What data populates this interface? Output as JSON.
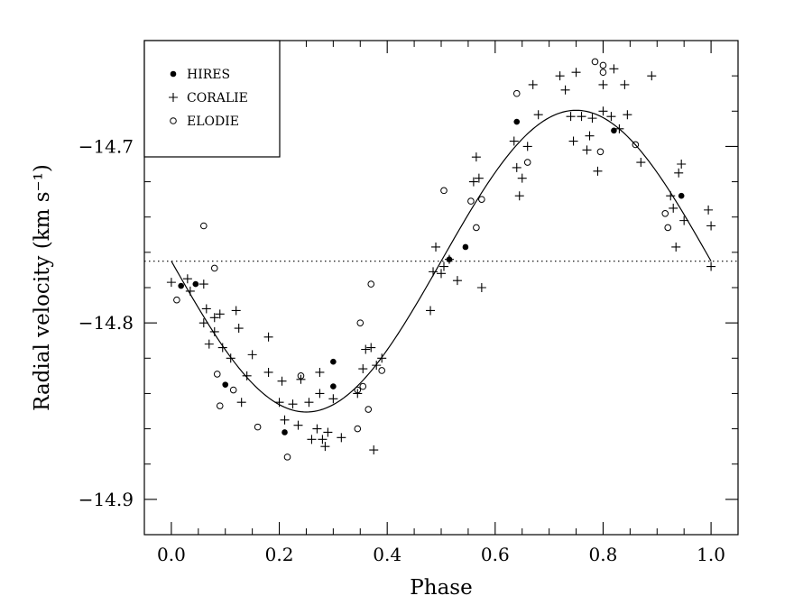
{
  "chart_data": {
    "type": "scatter",
    "xlabel": "Phase",
    "ylabel": "Radial velocity (km s⁻¹)",
    "xlim": [
      -0.05,
      1.05
    ],
    "ylim": [
      -14.92,
      -14.64
    ],
    "xticks": [
      0.0,
      0.2,
      0.4,
      0.6,
      0.8,
      1.0
    ],
    "xtick_labels": [
      "0.0",
      "0.2",
      "0.4",
      "0.6",
      "0.8",
      "1.0"
    ],
    "yticks": [
      -14.9,
      -14.8,
      -14.7
    ],
    "ytick_labels": [
      "−14.9",
      "−14.8",
      "−14.7"
    ],
    "grid": false,
    "legend_position": "top-left",
    "reference_line": {
      "y": -14.765,
      "style": "dotted"
    },
    "fit_curve": {
      "type": "sine",
      "offset": -14.765,
      "amplitude": 0.0855,
      "period": 1.0,
      "phase_of_minimum": 0.25
    },
    "series": [
      {
        "name": "HIRES",
        "marker": "filled-circle",
        "points": [
          [
            0.018,
            -14.779
          ],
          [
            0.045,
            -14.778
          ],
          [
            0.1,
            -14.835
          ],
          [
            0.21,
            -14.862
          ],
          [
            0.3,
            -14.822
          ],
          [
            0.3,
            -14.836
          ],
          [
            0.515,
            -14.764
          ],
          [
            0.545,
            -14.757
          ],
          [
            0.64,
            -14.686
          ],
          [
            0.82,
            -14.691
          ],
          [
            0.945,
            -14.728
          ]
        ]
      },
      {
        "name": "CORALIE",
        "marker": "plus",
        "points": [
          [
            0.0,
            -14.777
          ],
          [
            0.03,
            -14.775
          ],
          [
            0.035,
            -14.782
          ],
          [
            0.06,
            -14.778
          ],
          [
            0.06,
            -14.8
          ],
          [
            0.065,
            -14.792
          ],
          [
            0.07,
            -14.812
          ],
          [
            0.08,
            -14.797
          ],
          [
            0.08,
            -14.805
          ],
          [
            0.09,
            -14.795
          ],
          [
            0.095,
            -14.814
          ],
          [
            0.11,
            -14.82
          ],
          [
            0.12,
            -14.793
          ],
          [
            0.125,
            -14.803
          ],
          [
            0.13,
            -14.845
          ],
          [
            0.14,
            -14.83
          ],
          [
            0.15,
            -14.818
          ],
          [
            0.18,
            -14.808
          ],
          [
            0.18,
            -14.828
          ],
          [
            0.2,
            -14.845
          ],
          [
            0.205,
            -14.833
          ],
          [
            0.21,
            -14.855
          ],
          [
            0.225,
            -14.846
          ],
          [
            0.235,
            -14.858
          ],
          [
            0.24,
            -14.832
          ],
          [
            0.255,
            -14.845
          ],
          [
            0.26,
            -14.866
          ],
          [
            0.27,
            -14.86
          ],
          [
            0.275,
            -14.84
          ],
          [
            0.275,
            -14.828
          ],
          [
            0.28,
            -14.866
          ],
          [
            0.285,
            -14.87
          ],
          [
            0.29,
            -14.862
          ],
          [
            0.3,
            -14.843
          ],
          [
            0.315,
            -14.865
          ],
          [
            0.345,
            -14.84
          ],
          [
            0.355,
            -14.826
          ],
          [
            0.36,
            -14.815
          ],
          [
            0.37,
            -14.814
          ],
          [
            0.375,
            -14.872
          ],
          [
            0.38,
            -14.824
          ],
          [
            0.39,
            -14.82
          ],
          [
            0.48,
            -14.793
          ],
          [
            0.485,
            -14.771
          ],
          [
            0.49,
            -14.757
          ],
          [
            0.5,
            -14.772
          ],
          [
            0.505,
            -14.768
          ],
          [
            0.515,
            -14.764
          ],
          [
            0.53,
            -14.776
          ],
          [
            0.56,
            -14.72
          ],
          [
            0.565,
            -14.706
          ],
          [
            0.57,
            -14.718
          ],
          [
            0.575,
            -14.78
          ],
          [
            0.635,
            -14.697
          ],
          [
            0.64,
            -14.712
          ],
          [
            0.645,
            -14.728
          ],
          [
            0.65,
            -14.718
          ],
          [
            0.66,
            -14.7
          ],
          [
            0.67,
            -14.665
          ],
          [
            0.68,
            -14.682
          ],
          [
            0.72,
            -14.66
          ],
          [
            0.73,
            -14.668
          ],
          [
            0.74,
            -14.683
          ],
          [
            0.745,
            -14.697
          ],
          [
            0.75,
            -14.658
          ],
          [
            0.76,
            -14.683
          ],
          [
            0.77,
            -14.702
          ],
          [
            0.775,
            -14.694
          ],
          [
            0.78,
            -14.684
          ],
          [
            0.79,
            -14.714
          ],
          [
            0.8,
            -14.665
          ],
          [
            0.8,
            -14.68
          ],
          [
            0.815,
            -14.683
          ],
          [
            0.82,
            -14.656
          ],
          [
            0.83,
            -14.69
          ],
          [
            0.84,
            -14.665
          ],
          [
            0.845,
            -14.682
          ],
          [
            0.87,
            -14.709
          ],
          [
            0.89,
            -14.66
          ],
          [
            0.925,
            -14.728
          ],
          [
            0.93,
            -14.735
          ],
          [
            0.935,
            -14.757
          ],
          [
            0.94,
            -14.715
          ],
          [
            0.945,
            -14.71
          ],
          [
            0.95,
            -14.742
          ],
          [
            0.995,
            -14.736
          ],
          [
            1.0,
            -14.745
          ],
          [
            1.0,
            -14.768
          ]
        ]
      },
      {
        "name": "ELODIE",
        "marker": "open-circle",
        "points": [
          [
            0.01,
            -14.787
          ],
          [
            0.06,
            -14.745
          ],
          [
            0.08,
            -14.769
          ],
          [
            0.085,
            -14.829
          ],
          [
            0.09,
            -14.847
          ],
          [
            0.115,
            -14.838
          ],
          [
            0.16,
            -14.859
          ],
          [
            0.215,
            -14.876
          ],
          [
            0.24,
            -14.83
          ],
          [
            0.345,
            -14.838
          ],
          [
            0.35,
            -14.8
          ],
          [
            0.355,
            -14.836
          ],
          [
            0.345,
            -14.86
          ],
          [
            0.365,
            -14.849
          ],
          [
            0.37,
            -14.778
          ],
          [
            0.39,
            -14.827
          ],
          [
            0.505,
            -14.725
          ],
          [
            0.555,
            -14.731
          ],
          [
            0.565,
            -14.746
          ],
          [
            0.575,
            -14.73
          ],
          [
            0.64,
            -14.67
          ],
          [
            0.66,
            -14.709
          ],
          [
            0.785,
            -14.652
          ],
          [
            0.795,
            -14.703
          ],
          [
            0.8,
            -14.654
          ],
          [
            0.8,
            -14.658
          ],
          [
            0.86,
            -14.699
          ],
          [
            0.915,
            -14.738
          ],
          [
            0.92,
            -14.746
          ]
        ]
      }
    ]
  }
}
